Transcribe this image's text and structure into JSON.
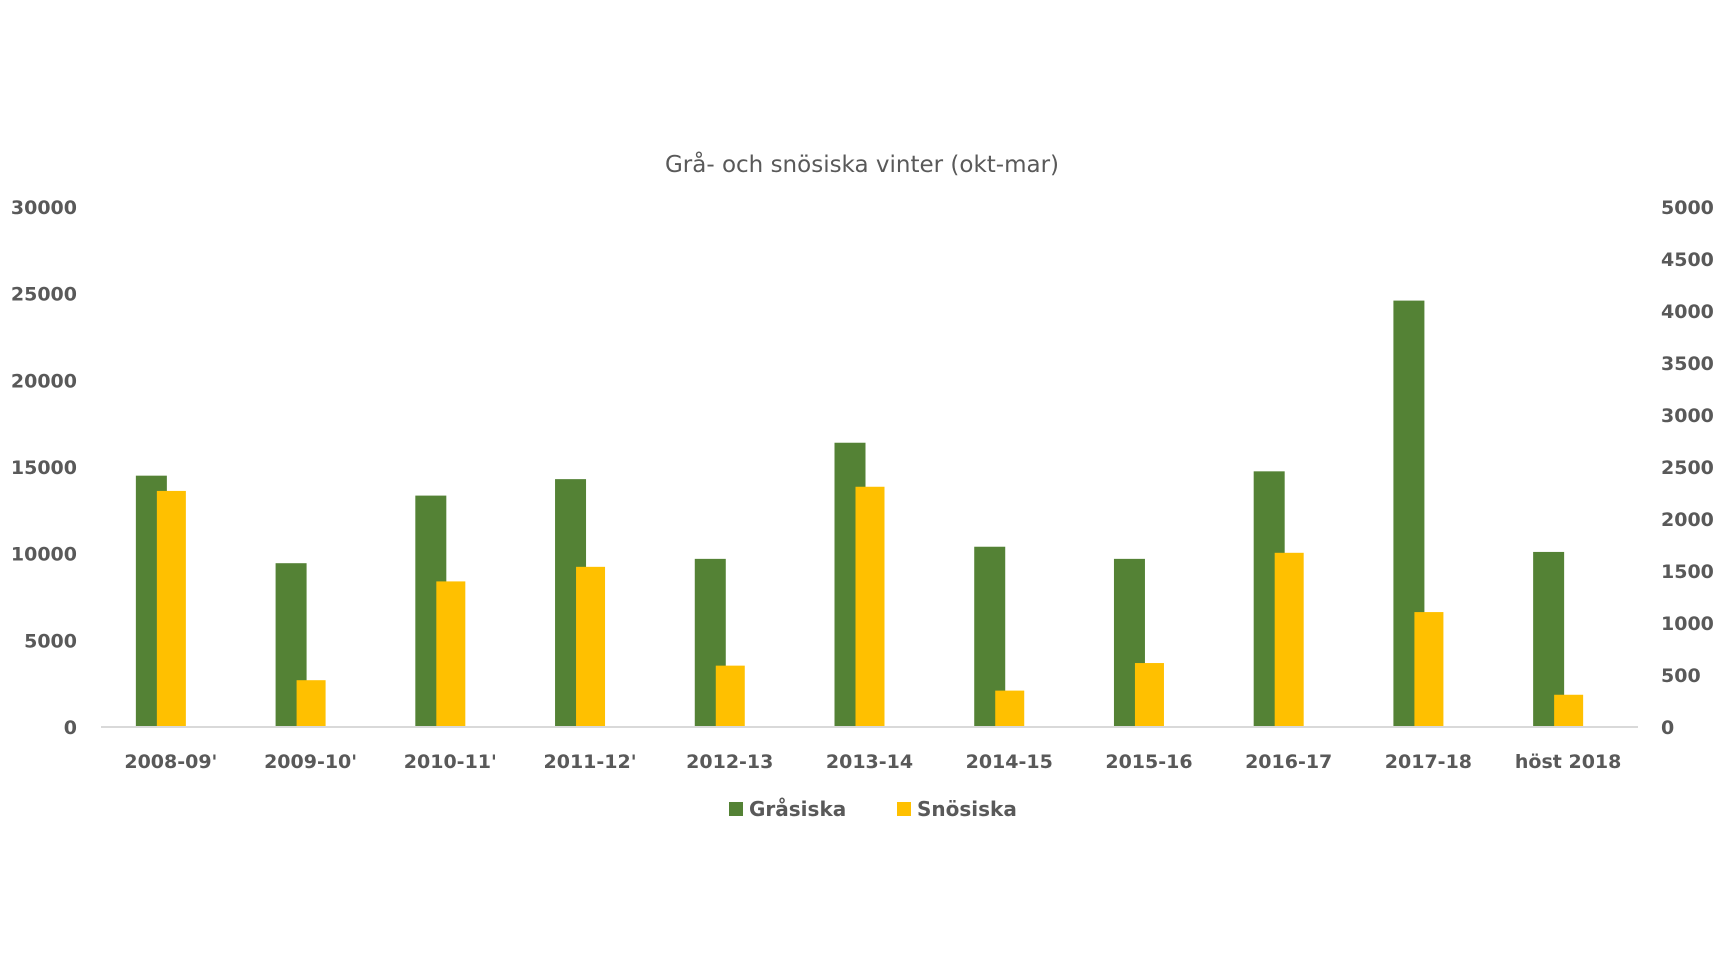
{
  "chart_data": {
    "type": "bar",
    "title": "Grå- och snösiska vinter (okt-mar)",
    "xlabel": "",
    "ylabel": "",
    "categories": [
      "2008-09'",
      "2009-10'",
      "2010-11'",
      "2011-12'",
      "2012-13",
      "2013-14",
      "2014-15",
      "2015-16",
      "2016-17",
      "2017-18",
      "höst 2018"
    ],
    "series": [
      {
        "name": "Gråsiska",
        "axis": "left",
        "color": "#548235",
        "values": [
          14500,
          9450,
          13350,
          14300,
          9700,
          16400,
          10400,
          9700,
          14750,
          24600,
          10100
        ]
      },
      {
        "name": "Snösiska",
        "axis": "right",
        "color": "#FFC000",
        "values": [
          2270,
          450,
          1400,
          1540,
          590,
          2310,
          350,
          615,
          1675,
          1105,
          310
        ]
      }
    ],
    "y_left": {
      "ylim": [
        0,
        30000
      ],
      "ticks": [
        0,
        5000,
        10000,
        15000,
        20000,
        25000,
        30000
      ]
    },
    "y_right": {
      "ylim": [
        0,
        5000
      ],
      "ticks": [
        0,
        500,
        1000,
        1500,
        2000,
        2500,
        3000,
        3500,
        4000,
        4500,
        5000
      ]
    },
    "grid": false,
    "legend_position": "bottom"
  },
  "legend": [
    {
      "label": "Gråsiska",
      "color": "#548235"
    },
    {
      "label": "Snösiska",
      "color": "#FFC000"
    }
  ],
  "colors": {
    "axis_line": "#D9D9D9",
    "text": "#595959"
  }
}
